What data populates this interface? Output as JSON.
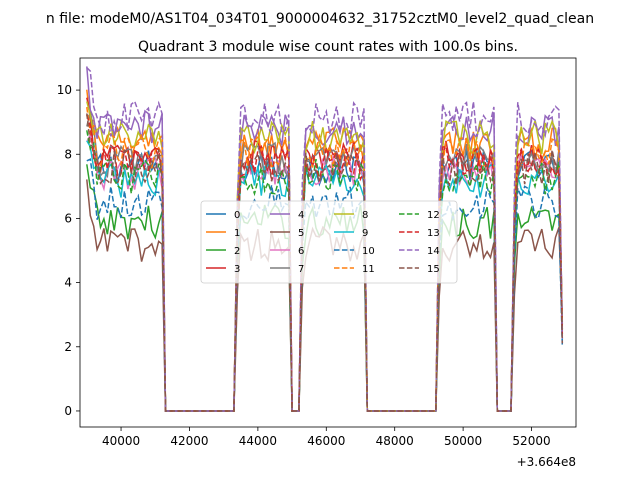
{
  "suptitle": "n file: modeM0/AS1T04_034T01_9000004632_31752cztM0_level2_quad_clean",
  "chart_data": {
    "type": "line",
    "title": "Quadrant 3 module wise count rates with 100.0s bins.",
    "xlabel": "",
    "ylabel": "",
    "x_offset_label": "+3.664e8",
    "x_offset": 366400000,
    "xlim": [
      38800,
      53300
    ],
    "ylim": [
      -0.5,
      11.0
    ],
    "xticks": [
      40000,
      42000,
      44000,
      46000,
      48000,
      50000,
      52000
    ],
    "yticks": [
      0,
      2,
      4,
      6,
      8,
      10
    ],
    "xtick_labels": [
      "40000",
      "42000",
      "44000",
      "46000",
      "48000",
      "50000",
      "52000"
    ],
    "ytick_labels": [
      "0",
      "2",
      "4",
      "6",
      "8",
      "10"
    ],
    "legend_position": "center",
    "segments": [
      [
        39000,
        41200
      ],
      [
        43400,
        44900
      ],
      [
        45300,
        47100
      ],
      [
        49300,
        50900
      ],
      [
        51500,
        52900
      ]
    ],
    "series": [
      {
        "name": "0",
        "color": "#1f77b4",
        "dash": "solid",
        "level": 7.6
      },
      {
        "name": "1",
        "color": "#ff7f0e",
        "dash": "solid",
        "level": 8.3
      },
      {
        "name": "2",
        "color": "#2ca02c",
        "dash": "solid",
        "level": 5.9
      },
      {
        "name": "3",
        "color": "#d62728",
        "dash": "solid",
        "level": 7.9
      },
      {
        "name": "4",
        "color": "#9467bd",
        "dash": "solid",
        "level": 8.8
      },
      {
        "name": "5",
        "color": "#8c564b",
        "dash": "solid",
        "level": 5.2
      },
      {
        "name": "6",
        "color": "#e377c2",
        "dash": "solid",
        "level": 7.4
      },
      {
        "name": "7",
        "color": "#7f7f7f",
        "dash": "solid",
        "level": 7.8
      },
      {
        "name": "8",
        "color": "#bcbd22",
        "dash": "solid",
        "level": 8.5
      },
      {
        "name": "9",
        "color": "#17becf",
        "dash": "solid",
        "level": 7.2
      },
      {
        "name": "10",
        "color": "#1f77b4",
        "dash": "dashed",
        "level": 6.5
      },
      {
        "name": "11",
        "color": "#ff7f0e",
        "dash": "dashed",
        "level": 8.1
      },
      {
        "name": "12",
        "color": "#2ca02c",
        "dash": "dashed",
        "level": 7.3
      },
      {
        "name": "13",
        "color": "#d62728",
        "dash": "dashed",
        "level": 7.7
      },
      {
        "name": "14",
        "color": "#9467bd",
        "dash": "dashed",
        "level": 9.1
      },
      {
        "name": "15",
        "color": "#8c564b",
        "dash": "dashed",
        "level": 7.6
      }
    ]
  }
}
